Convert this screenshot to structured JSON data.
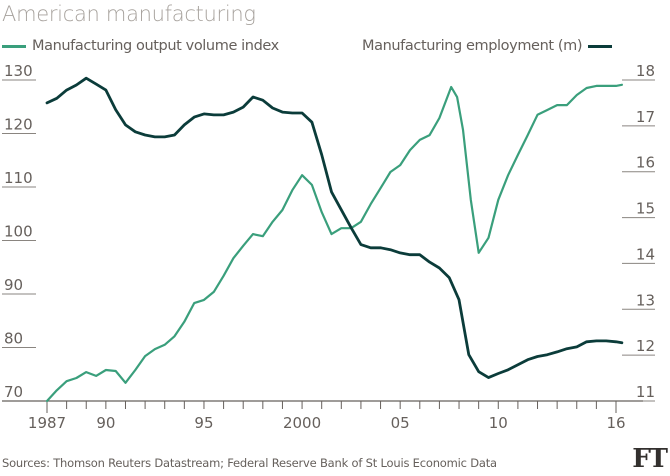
{
  "chart_data": {
    "type": "line",
    "title": "American manufacturing",
    "source": "Sources: Thomson Reuters Datastream; Federal Reserve Bank of St Louis Economic Data",
    "logo": "FT",
    "xlim": [
      1987,
      2017.3
    ],
    "x_ticks": [
      {
        "value": 1987,
        "label": "1987"
      },
      {
        "value": 1990,
        "label": "90"
      },
      {
        "value": 1995,
        "label": "95"
      },
      {
        "value": 2000,
        "label": "2000"
      },
      {
        "value": 2005,
        "label": "05"
      },
      {
        "value": 2010,
        "label": "10"
      },
      {
        "value": 2016,
        "label": "16"
      }
    ],
    "y_left": {
      "range": [
        70,
        130
      ],
      "ticks": [
        "130",
        "120",
        "110",
        "100",
        "90",
        "80",
        "70"
      ]
    },
    "y_right": {
      "range": [
        11,
        18
      ],
      "ticks": [
        "18",
        "17",
        "16",
        "15",
        "14",
        "13",
        "12",
        "11"
      ]
    },
    "colors": {
      "output": "#3a9f7c",
      "employment": "#0b3c3a"
    },
    "series": [
      {
        "name": "Manufacturing output volume index",
        "axis": "left",
        "x": [
          1987,
          1987.5,
          1988,
          1988.5,
          1989,
          1989.5,
          1990,
          1990.5,
          1991,
          1991.5,
          1992,
          1992.5,
          1993,
          1993.5,
          1994,
          1994.5,
          1995,
          1995.5,
          1996,
          1996.5,
          1997,
          1997.5,
          1998,
          1998.5,
          1999,
          1999.5,
          2000,
          2000.5,
          2001,
          2001.5,
          2002,
          2002.5,
          2003,
          2003.5,
          2004,
          2004.5,
          2005,
          2005.5,
          2006,
          2006.5,
          2007,
          2007.6,
          2007.9,
          2008.2,
          2008.6,
          2009,
          2009.5,
          2010,
          2010.5,
          2011,
          2011.5,
          2012,
          2012.5,
          2013,
          2013.5,
          2014,
          2014.5,
          2015,
          2015.5,
          2016,
          2016.3
        ],
        "y": [
          70,
          72,
          73.7,
          74.3,
          75.4,
          74.7,
          75.8,
          75.6,
          73.4,
          75.8,
          78.4,
          79.7,
          80.5,
          82.1,
          84.8,
          88.3,
          88.9,
          90.4,
          93.4,
          96.7,
          99,
          101.2,
          100.8,
          103.5,
          105.7,
          109.4,
          112.2,
          110.4,
          105.3,
          101.2,
          102.3,
          102.3,
          103.5,
          106.8,
          109.8,
          112.8,
          114.1,
          116.9,
          118.8,
          119.7,
          122.9,
          128.7,
          126.8,
          120.7,
          107.6,
          97.7,
          100.5,
          107.6,
          112.2,
          116,
          119.7,
          123.5,
          124.4,
          125.3,
          125.3,
          127.2,
          128.5,
          128.9,
          128.9,
          128.9,
          129.1
        ]
      },
      {
        "name": "Manufacturing employment (m)",
        "axis": "right",
        "x": [
          1987,
          1987.5,
          1988,
          1988.5,
          1989,
          1989.5,
          1990,
          1990.5,
          1991,
          1991.5,
          1992,
          1992.5,
          1993,
          1993.5,
          1994,
          1994.5,
          1995,
          1995.5,
          1996,
          1996.5,
          1997,
          1997.5,
          1998,
          1998.5,
          1999,
          1999.5,
          2000,
          2000.5,
          2001,
          2001.5,
          2002,
          2002.5,
          2003,
          2003.5,
          2004,
          2004.5,
          2005,
          2005.5,
          2006,
          2006.5,
          2007,
          2007.5,
          2008,
          2008.5,
          2009,
          2009.5,
          2010,
          2010.5,
          2011,
          2011.5,
          2012,
          2012.5,
          2013,
          2013.5,
          2014,
          2014.5,
          2015,
          2015.5,
          2016,
          2016.3
        ],
        "y": [
          17.5,
          17.6,
          17.78,
          17.89,
          18.04,
          17.91,
          17.78,
          17.35,
          17.02,
          16.87,
          16.8,
          16.76,
          16.76,
          16.8,
          17.02,
          17.19,
          17.26,
          17.24,
          17.24,
          17.3,
          17.41,
          17.63,
          17.56,
          17.39,
          17.3,
          17.28,
          17.28,
          17.08,
          16.37,
          15.56,
          15.17,
          14.78,
          14.41,
          14.34,
          14.34,
          14.3,
          14.23,
          14.19,
          14.19,
          14.03,
          13.9,
          13.69,
          13.21,
          12.01,
          11.64,
          11.51,
          11.6,
          11.68,
          11.79,
          11.9,
          11.97,
          12.01,
          12.07,
          12.14,
          12.18,
          12.29,
          12.31,
          12.31,
          12.29,
          12.27
        ]
      }
    ]
  }
}
